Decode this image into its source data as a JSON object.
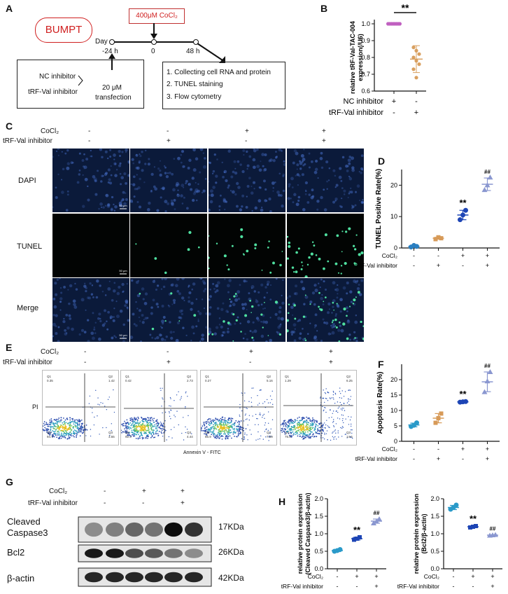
{
  "panels": {
    "A": "A",
    "B": "B",
    "C": "C",
    "D": "D",
    "E": "E",
    "F": "F",
    "G": "G",
    "H": "H"
  },
  "panelA": {
    "cell_line": "BUMPT",
    "treatment": "400μM CoCl₂",
    "day_label": "Day",
    "timepoints": [
      "-24 h",
      "0",
      "48 h"
    ],
    "inhibitors": [
      "NC inhibitor",
      "tRF-Val inhibitor"
    ],
    "transfection": [
      "20 μM",
      "transfection"
    ],
    "steps": [
      "1. Collecting cell RNA and protein",
      "2. TUNEL staining",
      "3. Flow cytometry"
    ]
  },
  "conditions": {
    "cocl2_label": "CoCl₂",
    "inhibitor_label": "tRF-Val inhibitor",
    "cocl2_signs": [
      "-",
      "-",
      "+",
      "+"
    ],
    "inhibitor_signs": [
      "-",
      "+",
      "-",
      "+"
    ]
  },
  "panelC": {
    "rows": [
      "DAPI",
      "TUNEL",
      "Merge"
    ],
    "scalebar": "50 μm"
  },
  "panelE": {
    "ylabel": "PI",
    "xlabel": "Annexin V - FITC",
    "quadrants": [
      {
        "q1": "Q1",
        "q2": "Q2",
        "q3": "Q3",
        "q4": "Q4",
        "v1": "0.35",
        "v2": "1.42",
        "v3": "3.55",
        "v4": "94.7"
      },
      {
        "q1": "Q1",
        "q2": "Q2",
        "q3": "Q3",
        "q4": "Q4",
        "v1": "0.42",
        "v2": "2.73",
        "v3": "4.44",
        "v4": "92.4"
      },
      {
        "q1": "Q1",
        "q2": "Q2",
        "q3": "Q3",
        "q4": "Q4",
        "v1": "0.27",
        "v2": "5.16",
        "v3": "7.59",
        "v4": "86.9"
      },
      {
        "q1": "Q1",
        "q2": "Q2",
        "q3": "Q3",
        "q4": "Q4",
        "v1": "1.29",
        "v2": "6.25",
        "v3": "14.6",
        "v4": "75.9"
      }
    ]
  },
  "panelG": {
    "bands": [
      "Cleaved Caspase3",
      "Bcl2",
      "β-actin"
    ],
    "band_line1": "Cleaved",
    "band_line2": "Caspase3",
    "sizes": [
      "17KDa",
      "26KDa",
      "42KDa"
    ],
    "cocl2_signs": [
      "-",
      "+",
      "+"
    ],
    "inhibitor_signs": [
      "-",
      "-",
      "+"
    ]
  },
  "chart_data": [
    {
      "panel": "B",
      "type": "scatter",
      "ylabel": "relative tRF-Val-TAC-004 expression(/U6)",
      "ylim": [
        0.6,
        1.0
      ],
      "yticks": [
        0.6,
        0.7,
        0.8,
        0.9,
        1.0
      ],
      "row_labels": [
        "NC inhibitor",
        "tRF-Val inhibitor"
      ],
      "row1_signs": [
        "+",
        "-"
      ],
      "row2_signs": [
        "-",
        "+"
      ],
      "significance": "**",
      "series": [
        {
          "group": 1,
          "color": "#c060c0",
          "values": [
            1.0,
            1.0,
            1.0,
            1.0,
            1.0,
            1.0,
            1.0,
            1.0
          ],
          "mean": 1.0,
          "sd": 0.0
        },
        {
          "group": 2,
          "color": "#d9a060",
          "values": [
            0.86,
            0.84,
            0.82,
            0.8,
            0.78,
            0.76,
            0.73,
            0.68
          ],
          "mean": 0.79,
          "sd": 0.08
        }
      ]
    },
    {
      "panel": "D",
      "type": "scatter",
      "ylabel": "TUNEL Positive Rate(%)",
      "ylim": [
        0,
        25
      ],
      "yticks": [
        0,
        10,
        20
      ],
      "series": [
        {
          "color": "#2a7fc1",
          "values": [
            0.3,
            0.8,
            0.5
          ],
          "mean": 0.5,
          "sd": 0.3,
          "label": ""
        },
        {
          "color": "#d79a58",
          "values": [
            2.8,
            3.4,
            3.1
          ],
          "mean": 3.1,
          "sd": 0.3,
          "label": ""
        },
        {
          "color": "#1d45b5",
          "values": [
            9.0,
            10.5,
            12.0
          ],
          "mean": 10.5,
          "sd": 1.5,
          "label": "**"
        },
        {
          "color": "#8a97d0",
          "values": [
            18.5,
            20.0,
            22.5
          ],
          "mean": 20.3,
          "sd": 2.0,
          "label": "##"
        }
      ]
    },
    {
      "panel": "F",
      "type": "scatter",
      "ylabel": "Apoptosis Rate(%)",
      "ylim": [
        0,
        25
      ],
      "yticks": [
        0,
        5,
        10,
        15,
        20
      ],
      "series": [
        {
          "color": "#2a9ac9",
          "values": [
            4.8,
            5.2,
            6.0
          ],
          "mean": 5.3,
          "sd": 0.6,
          "label": ""
        },
        {
          "color": "#d79a58",
          "values": [
            6.0,
            7.5,
            9.0
          ],
          "mean": 7.5,
          "sd": 1.5,
          "label": ""
        },
        {
          "color": "#1d45b5",
          "values": [
            12.7,
            12.8,
            12.9
          ],
          "mean": 12.8,
          "sd": 0.1,
          "label": "**"
        },
        {
          "color": "#8a97d0",
          "values": [
            16.0,
            19.5,
            22.5
          ],
          "mean": 19.3,
          "sd": 3.2,
          "label": "##"
        }
      ]
    },
    {
      "panel": "H1",
      "type": "scatter",
      "ylabel": "relative protein expression (Cleaved Caspase3/β-actin)",
      "ylim": [
        0,
        2.0
      ],
      "yticks": [
        0.0,
        0.5,
        1.0,
        1.5,
        2.0
      ],
      "series": [
        {
          "color": "#2a9ac9",
          "values": [
            0.5,
            0.52,
            0.55
          ],
          "mean": 0.52,
          "sd": 0.03,
          "label": ""
        },
        {
          "color": "#1d45b5",
          "values": [
            0.83,
            0.86,
            0.9
          ],
          "mean": 0.86,
          "sd": 0.04,
          "label": "**"
        },
        {
          "color": "#8a97d0",
          "values": [
            1.3,
            1.35,
            1.42
          ],
          "mean": 1.36,
          "sd": 0.06,
          "label": "##"
        }
      ]
    },
    {
      "panel": "H2",
      "type": "scatter",
      "ylabel": "relative protein expression (Bcl2/β-actin)",
      "ylim": [
        0,
        2.0
      ],
      "yticks": [
        0.0,
        0.5,
        1.0,
        1.5,
        2.0
      ],
      "series": [
        {
          "color": "#2a9ac9",
          "values": [
            1.7,
            1.75,
            1.82
          ],
          "mean": 1.75,
          "sd": 0.06,
          "label": ""
        },
        {
          "color": "#1d45b5",
          "values": [
            1.18,
            1.2,
            1.22
          ],
          "mean": 1.2,
          "sd": 0.02,
          "label": "**"
        },
        {
          "color": "#8a97d0",
          "values": [
            0.95,
            0.96,
            0.97
          ],
          "mean": 0.96,
          "sd": 0.01,
          "label": "##"
        }
      ]
    }
  ]
}
